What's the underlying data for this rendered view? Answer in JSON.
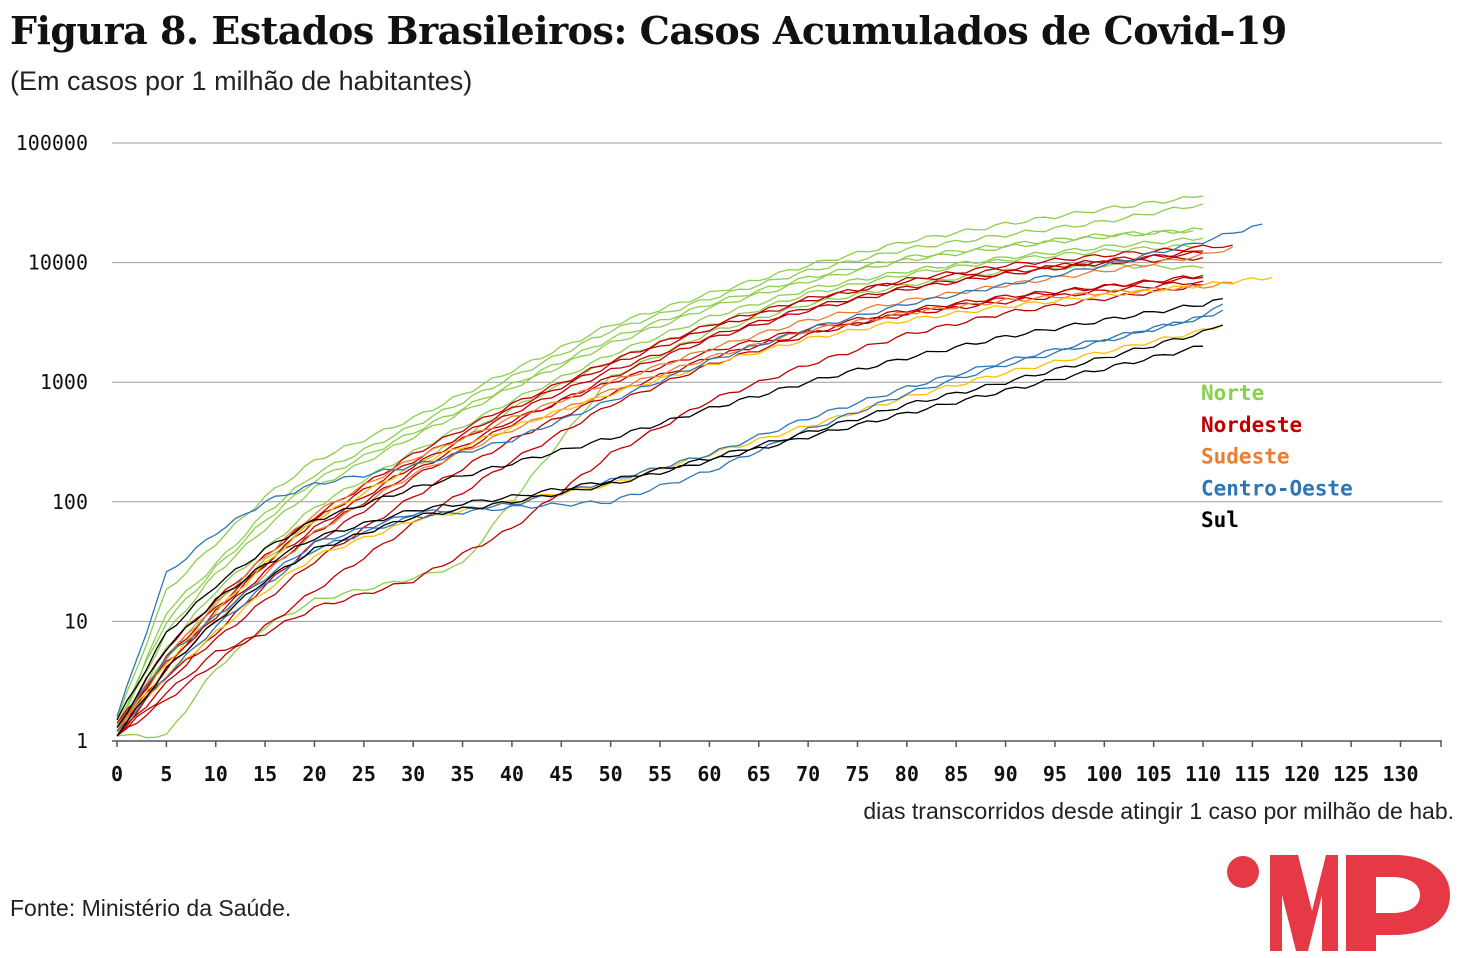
{
  "title": "Figura 8. Estados Brasileiros: Casos Acumulados de Covid-19",
  "subtitle": "(Em casos por 1 milhão de habitantes)",
  "source": "Fonte: Ministério da Saúde.",
  "logo": {
    "text": "MP",
    "color": "#e63946"
  },
  "chart_data": {
    "type": "line",
    "title": "Figura 8. Estados Brasileiros: Casos Acumulados de Covid-19",
    "subtitle": "(Em casos por 1 milhão de habitantes)",
    "xlabel": "dias transcorridos desde atingir 1 caso por milhão de hab.",
    "ylabel": "",
    "yscale": "log",
    "xlim": [
      0,
      134
    ],
    "ylim": [
      1,
      100000
    ],
    "x_ticks": [
      0,
      5,
      10,
      15,
      20,
      25,
      30,
      35,
      40,
      45,
      50,
      55,
      60,
      65,
      70,
      75,
      80,
      85,
      90,
      95,
      100,
      105,
      110,
      115,
      120,
      125,
      130
    ],
    "y_ticks": [
      1,
      10,
      100,
      1000,
      10000,
      100000
    ],
    "y_tick_labels": [
      "1",
      "10",
      "100",
      "1000",
      "10000",
      "100000"
    ],
    "grid": "horizontal",
    "legend_placement": "right",
    "legend": [
      {
        "name": "Norte",
        "color": "#8ccf4d"
      },
      {
        "name": "Nordeste",
        "color": "#c00000"
      },
      {
        "name": "Sudeste",
        "color": "#ed7d31"
      },
      {
        "name": "Centro-Oeste",
        "color": "#2e75b6"
      },
      {
        "name": "Sul",
        "color": "#000000"
      }
    ],
    "series": [
      {
        "region": "Norte",
        "color": "#8ccf4d",
        "x": [
          0,
          5,
          10,
          15,
          20,
          30,
          40,
          50,
          60,
          70,
          80,
          90,
          100,
          110
        ],
        "y": [
          1.5,
          18,
          45,
          110,
          220,
          500,
          1250,
          3000,
          5500,
          9500,
          15000,
          21000,
          28000,
          36000
        ]
      },
      {
        "region": "Norte",
        "color": "#8ccf4d",
        "x": [
          0,
          5,
          10,
          15,
          20,
          30,
          40,
          50,
          60,
          70,
          80,
          90,
          100,
          110
        ],
        "y": [
          1.2,
          12,
          30,
          80,
          170,
          430,
          1100,
          2700,
          5000,
          8500,
          13000,
          17000,
          22000,
          31000
        ]
      },
      {
        "region": "Norte",
        "color": "#8ccf4d",
        "x": [
          0,
          5,
          10,
          15,
          20,
          30,
          40,
          50,
          60,
          70,
          80,
          90,
          100,
          110
        ],
        "y": [
          1.3,
          8,
          25,
          60,
          130,
          350,
          900,
          2100,
          4200,
          7000,
          10500,
          13500,
          16500,
          19000
        ]
      },
      {
        "region": "Norte",
        "color": "#8ccf4d",
        "x": [
          0,
          5,
          10,
          15,
          20,
          30,
          40,
          50,
          60,
          70,
          80,
          90,
          100,
          110
        ],
        "y": [
          1.1,
          6,
          18,
          40,
          90,
          260,
          700,
          1700,
          3500,
          6000,
          8500,
          11000,
          13500,
          16000
        ]
      },
      {
        "region": "Norte",
        "color": "#8ccf4d",
        "x": [
          0,
          5,
          10,
          15,
          20,
          30,
          40,
          50,
          60,
          70,
          80,
          90,
          100,
          109
        ],
        "y": [
          1.4,
          10,
          28,
          70,
          150,
          380,
          950,
          2300,
          4500,
          7500,
          11000,
          14000,
          17000,
          18500
        ]
      },
      {
        "region": "Norte",
        "color": "#8ccf4d",
        "x": [
          0,
          5,
          10,
          15,
          20,
          30,
          35,
          40,
          50,
          60,
          70,
          80,
          90,
          100,
          110
        ],
        "y": [
          1.1,
          1.1,
          4,
          9,
          15,
          23,
          30,
          100,
          1100,
          2600,
          4500,
          6500,
          8500,
          9500,
          9000
        ]
      },
      {
        "region": "Norte",
        "color": "#8ccf4d",
        "x": [
          0,
          5,
          10,
          15,
          20,
          30,
          40,
          50,
          60,
          70,
          80,
          90,
          100,
          110
        ],
        "y": [
          1.2,
          5,
          14,
          32,
          70,
          200,
          600,
          1500,
          3000,
          5500,
          8000,
          10500,
          12500,
          14000
        ]
      },
      {
        "region": "Nordeste",
        "color": "#c00000",
        "x": [
          0,
          5,
          10,
          15,
          20,
          30,
          40,
          50,
          60,
          70,
          80,
          90,
          100,
          110,
          113
        ],
        "y": [
          1.2,
          4,
          12,
          30,
          70,
          220,
          600,
          1400,
          2800,
          4800,
          7200,
          9500,
          11500,
          13500,
          14000
        ]
      },
      {
        "region": "Nordeste",
        "color": "#c00000",
        "x": [
          0,
          5,
          10,
          15,
          20,
          30,
          40,
          50,
          60,
          70,
          80,
          90,
          100,
          110
        ],
        "y": [
          1.1,
          3,
          8,
          20,
          45,
          160,
          450,
          1100,
          2300,
          4000,
          6000,
          8000,
          10000,
          12500
        ]
      },
      {
        "region": "Nordeste",
        "color": "#c00000",
        "x": [
          0,
          5,
          10,
          15,
          20,
          30,
          40,
          50,
          60,
          70,
          80,
          90,
          100,
          110
        ],
        "y": [
          1.3,
          6,
          15,
          35,
          75,
          250,
          650,
          1500,
          3000,
          5000,
          7000,
          8800,
          10000,
          11000
        ]
      },
      {
        "region": "Nordeste",
        "color": "#c00000",
        "x": [
          0,
          5,
          10,
          15,
          20,
          30,
          40,
          50,
          60,
          70,
          80,
          90,
          100,
          110
        ],
        "y": [
          1.1,
          2.5,
          5.5,
          8,
          13,
          22,
          60,
          250,
          700,
          1400,
          2500,
          3800,
          5000,
          6500
        ]
      },
      {
        "region": "Nordeste",
        "color": "#c00000",
        "x": [
          0,
          5,
          10,
          15,
          20,
          30,
          40,
          50,
          60,
          70,
          80,
          90,
          100,
          110
        ],
        "y": [
          1.4,
          4.5,
          11,
          26,
          55,
          180,
          480,
          1000,
          1800,
          2800,
          4000,
          5200,
          6300,
          7500
        ]
      },
      {
        "region": "Nordeste",
        "color": "#c00000",
        "x": [
          0,
          5,
          10,
          15,
          20,
          30,
          40,
          50,
          60,
          70,
          80,
          90,
          100,
          110
        ],
        "y": [
          1.1,
          3.5,
          7,
          15,
          32,
          110,
          330,
          800,
          1600,
          2600,
          3700,
          4700,
          5800,
          7000
        ]
      },
      {
        "region": "Nordeste",
        "color": "#c00000",
        "x": [
          0,
          5,
          10,
          15,
          20,
          30,
          40,
          50,
          60,
          70,
          80,
          90,
          100,
          110
        ],
        "y": [
          1.2,
          5,
          13,
          30,
          60,
          200,
          550,
          1250,
          2400,
          4200,
          6200,
          8200,
          10500,
          12000
        ]
      },
      {
        "region": "Nordeste",
        "color": "#c00000",
        "x": [
          0,
          5,
          10,
          15,
          20,
          30,
          40,
          50,
          60,
          70,
          80,
          90,
          100,
          110
        ],
        "y": [
          1.1,
          2.2,
          4.5,
          9,
          18,
          65,
          220,
          650,
          1400,
          2500,
          3800,
          5000,
          6300,
          7800
        ]
      },
      {
        "region": "Sudeste",
        "color": "#ed7d31",
        "x": [
          0,
          5,
          10,
          15,
          20,
          30,
          40,
          50,
          60,
          70,
          80,
          90,
          100,
          110,
          113
        ],
        "y": [
          1.3,
          5,
          14,
          35,
          80,
          230,
          500,
          1000,
          1900,
          3300,
          4800,
          6500,
          8500,
          11500,
          13500
        ]
      },
      {
        "region": "Sudeste",
        "color": "#ed7d31",
        "x": [
          0,
          5,
          10,
          15,
          20,
          30,
          40,
          50,
          60,
          70,
          80,
          90,
          100,
          110,
          113
        ],
        "y": [
          1.2,
          4,
          10,
          25,
          55,
          170,
          400,
          850,
          1600,
          2700,
          3800,
          4800,
          5600,
          6300,
          6800
        ]
      },
      {
        "region": "Sudeste",
        "color": "#ffc000",
        "x": [
          0,
          5,
          10,
          15,
          20,
          30,
          40,
          50,
          60,
          70,
          80,
          90,
          100,
          110,
          117
        ],
        "y": [
          1.1,
          4.5,
          12,
          30,
          70,
          200,
          420,
          800,
          1400,
          2300,
          3300,
          4300,
          5300,
          6500,
          7500
        ]
      },
      {
        "region": "Sudeste",
        "color": "#ffc000",
        "x": [
          0,
          5,
          10,
          15,
          20,
          30,
          40,
          50,
          60,
          70,
          80,
          90,
          100,
          110,
          112
        ],
        "y": [
          1.2,
          3.5,
          8,
          18,
          35,
          70,
          100,
          140,
          250,
          430,
          750,
          1200,
          1800,
          2700,
          3000
        ]
      },
      {
        "region": "Centro-Oeste",
        "color": "#2e75b6",
        "x": [
          0,
          5,
          10,
          15,
          20,
          30,
          40,
          50,
          60,
          70,
          80,
          90,
          100,
          110,
          116
        ],
        "y": [
          1.6,
          25,
          55,
          100,
          140,
          200,
          330,
          700,
          1500,
          2800,
          4500,
          6500,
          9500,
          15000,
          21000
        ]
      },
      {
        "region": "Centro-Oeste",
        "color": "#2e75b6",
        "x": [
          0,
          5,
          10,
          15,
          20,
          30,
          40,
          50,
          60,
          70,
          80,
          90,
          100,
          110,
          112
        ],
        "y": [
          1.2,
          3.5,
          9,
          20,
          40,
          75,
          90,
          100,
          180,
          400,
          800,
          1400,
          2200,
          3500,
          4500
        ]
      },
      {
        "region": "Centro-Oeste",
        "color": "#2e75b6",
        "x": [
          0,
          5,
          10,
          15,
          20,
          30,
          40,
          50,
          60,
          70,
          80,
          90,
          100,
          110,
          112
        ],
        "y": [
          1.3,
          5,
          11,
          23,
          45,
          80,
          95,
          150,
          250,
          500,
          900,
          1500,
          2300,
          3500,
          4000
        ]
      },
      {
        "region": "Sul",
        "color": "#000000",
        "x": [
          0,
          5,
          10,
          15,
          20,
          30,
          40,
          50,
          60,
          70,
          80,
          90,
          100,
          110,
          112
        ],
        "y": [
          1.5,
          8,
          20,
          40,
          70,
          130,
          210,
          340,
          600,
          1000,
          1600,
          2400,
          3300,
          4500,
          5000
        ]
      },
      {
        "region": "Sul",
        "color": "#000000",
        "x": [
          0,
          5,
          10,
          15,
          20,
          30,
          40,
          50,
          60,
          70,
          80,
          90,
          100,
          110,
          112
        ],
        "y": [
          1.3,
          6,
          15,
          30,
          50,
          85,
          110,
          150,
          230,
          380,
          650,
          1000,
          1600,
          2600,
          3000
        ]
      },
      {
        "region": "Sul",
        "color": "#000000",
        "x": [
          0,
          5,
          10,
          15,
          20,
          30,
          40,
          50,
          60,
          70,
          80,
          90,
          100,
          110
        ],
        "y": [
          1.1,
          4,
          10,
          22,
          40,
          75,
          100,
          140,
          220,
          350,
          550,
          850,
          1300,
          2000
        ]
      }
    ]
  }
}
